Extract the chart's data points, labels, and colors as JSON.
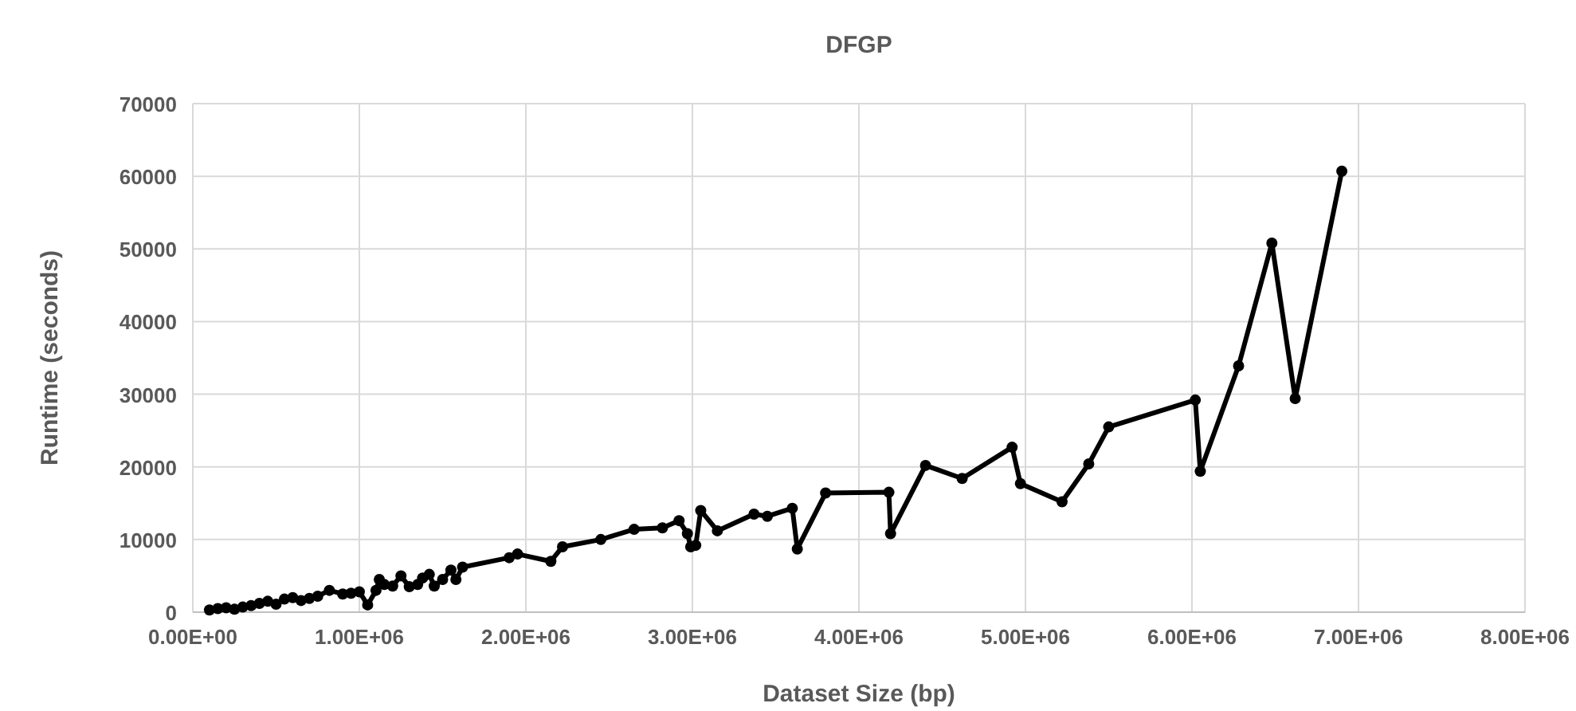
{
  "chart_data": {
    "type": "line",
    "title": "DFGP",
    "xlabel": "Dataset Size (bp)",
    "ylabel": "Runtime (seconds)",
    "x": [
      100000,
      150000,
      200000,
      250000,
      300000,
      350000,
      400000,
      450000,
      500000,
      550000,
      600000,
      650000,
      700000,
      750000,
      820000,
      900000,
      950000,
      1000000,
      1050000,
      1100000,
      1120000,
      1150000,
      1200000,
      1250000,
      1300000,
      1350000,
      1380000,
      1420000,
      1450000,
      1500000,
      1550000,
      1580000,
      1620000,
      1900000,
      1950000,
      2150000,
      2220000,
      2450000,
      2650000,
      2820000,
      2920000,
      2970000,
      2990000,
      3020000,
      3050000,
      3150000,
      3370000,
      3450000,
      3600000,
      3630000,
      3800000,
      4180000,
      4190000,
      4400000,
      4620000,
      4920000,
      4970000,
      5220000,
      5380000,
      5500000,
      6020000,
      6050000,
      6280000,
      6480000,
      6620000,
      6900000
    ],
    "series": [
      {
        "color": "#000000",
        "values": [
          300,
          500,
          600,
          400,
          700,
          900,
          1200,
          1500,
          1100,
          1800,
          2000,
          1600,
          1900,
          2200,
          3000,
          2500,
          2600,
          2800,
          1000,
          3000,
          4500,
          3800,
          3600,
          5000,
          3500,
          3800,
          4700,
          5200,
          3600,
          4500,
          5800,
          4500,
          6200,
          7500,
          8000,
          7000,
          9000,
          10000,
          11400,
          11600,
          12600,
          10800,
          9000,
          9200,
          14000,
          11200,
          13500,
          13200,
          14300,
          8700,
          16400,
          16500,
          10800,
          20200,
          18400,
          22700,
          17700,
          15200,
          20400,
          25500,
          29200,
          19400,
          33900,
          50800,
          29400,
          60700
        ]
      }
    ],
    "xlim": [
      0,
      8000000
    ],
    "xticks": [
      {
        "value": 0,
        "label": "0.00E+00"
      },
      {
        "value": 1000000,
        "label": "1.00E+06"
      },
      {
        "value": 2000000,
        "label": "2.00E+06"
      },
      {
        "value": 3000000,
        "label": "3.00E+06"
      },
      {
        "value": 4000000,
        "label": "4.00E+06"
      },
      {
        "value": 5000000,
        "label": "5.00E+06"
      },
      {
        "value": 6000000,
        "label": "6.00E+06"
      },
      {
        "value": 7000000,
        "label": "7.00E+06"
      },
      {
        "value": 8000000,
        "label": "8.00E+06"
      }
    ],
    "ylim": [
      0,
      70000
    ],
    "yticks": [
      0,
      10000,
      20000,
      30000,
      40000,
      50000,
      60000,
      70000
    ],
    "grid": true,
    "marker": "circle",
    "line_style": "solid"
  }
}
